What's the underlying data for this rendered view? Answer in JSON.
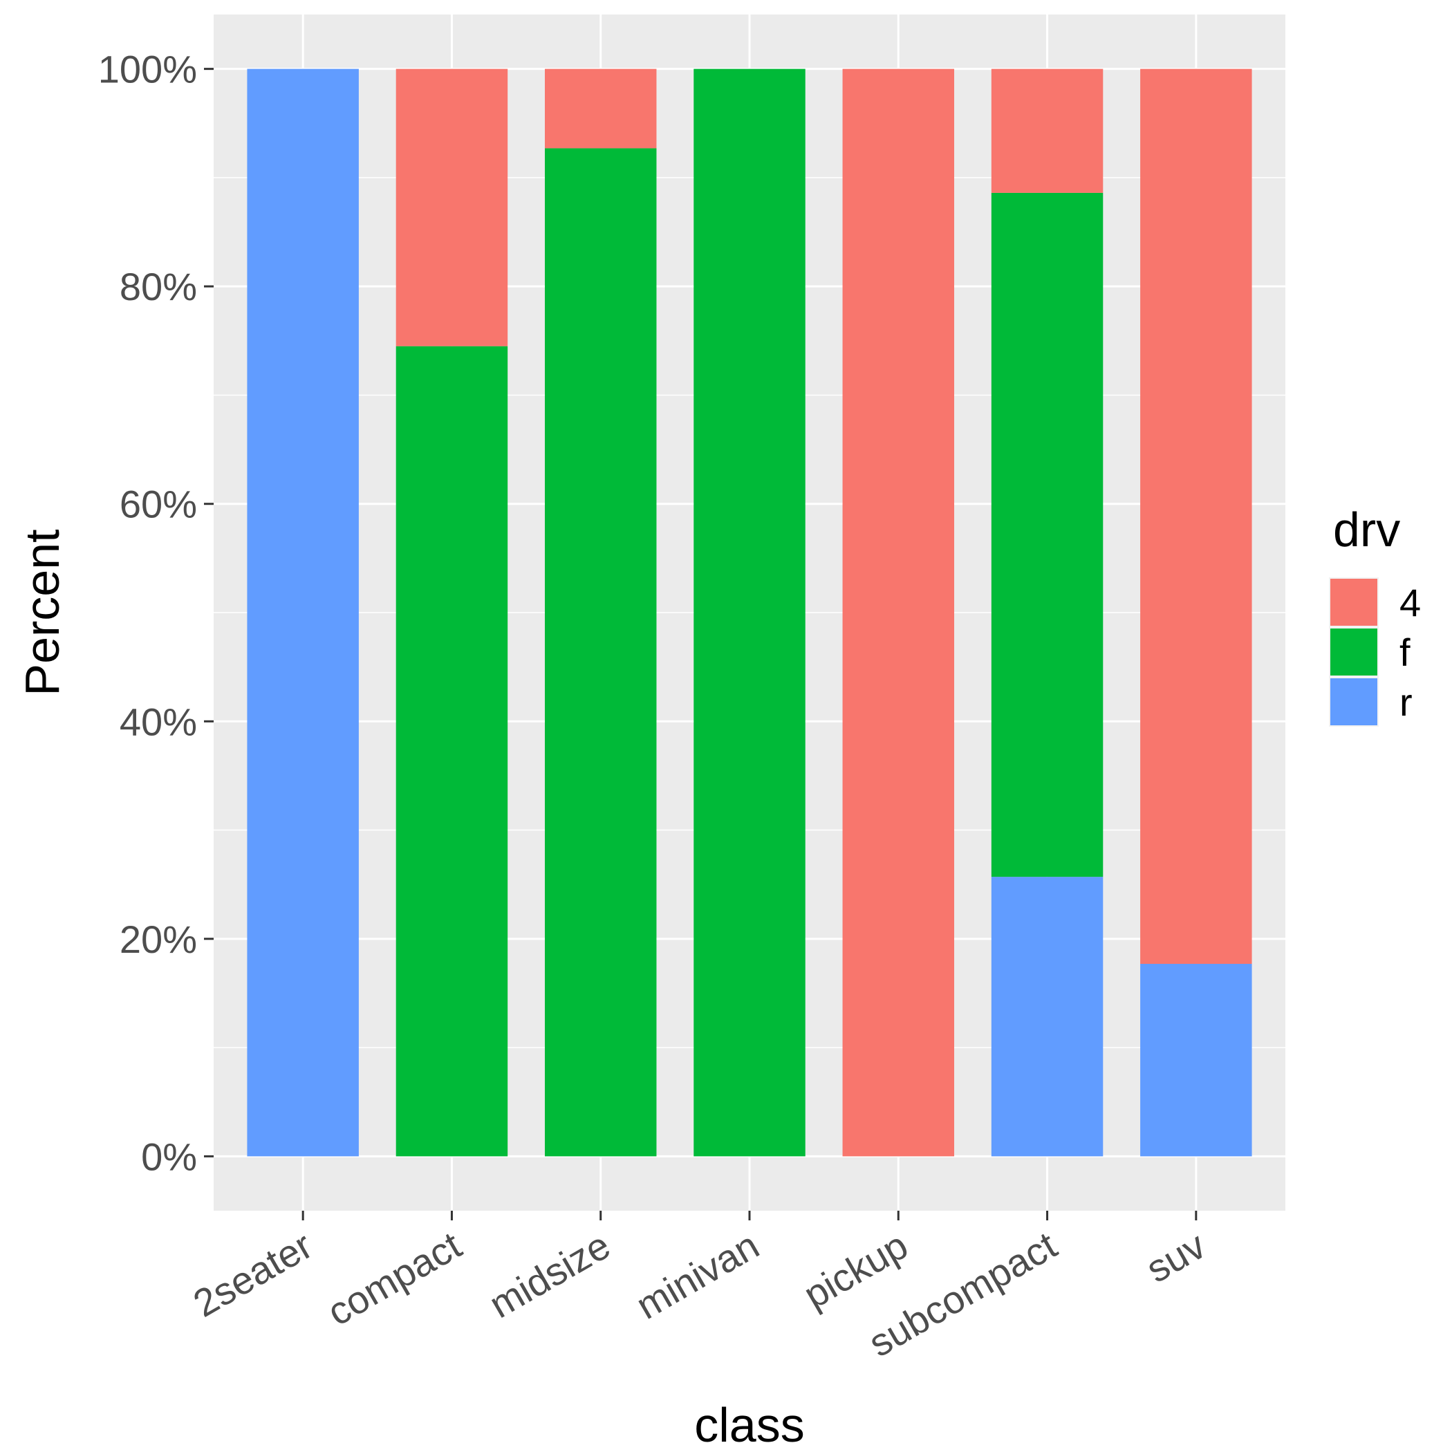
{
  "chart_data": {
    "type": "bar",
    "stacked": true,
    "xlabel": "class",
    "ylabel": "Percent",
    "ylim": [
      -0.05,
      1.05
    ],
    "y_ticks": [
      0,
      0.2,
      0.4,
      0.6,
      0.8,
      1.0
    ],
    "y_tick_labels": [
      "0%",
      "20%",
      "40%",
      "60%",
      "80%",
      "100%"
    ],
    "grid": true,
    "categories": [
      "2seater",
      "compact",
      "midsize",
      "minivan",
      "pickup",
      "subcompact",
      "suv"
    ],
    "series": [
      {
        "name": "4",
        "color": "#F8766D",
        "values": [
          0.0,
          0.255,
          0.073,
          0.0,
          1.0,
          0.114,
          0.823
        ]
      },
      {
        "name": "f",
        "color": "#00BA38",
        "values": [
          0.0,
          0.745,
          0.927,
          1.0,
          0.0,
          0.629,
          0.0
        ]
      },
      {
        "name": "r",
        "color": "#619CFF",
        "values": [
          1.0,
          0.0,
          0.0,
          0.0,
          0.0,
          0.257,
          0.177
        ]
      }
    ],
    "stack_order_bottom_to_top": [
      "r",
      "f",
      "4"
    ],
    "legend": {
      "title": "drv",
      "position": "right",
      "entries": [
        "4",
        "f",
        "r"
      ]
    }
  }
}
